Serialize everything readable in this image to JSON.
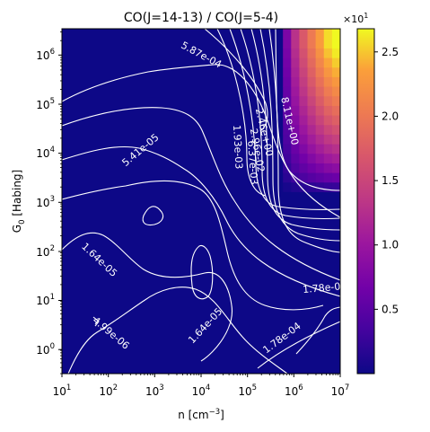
{
  "chart_data": {
    "type": "heatmap",
    "title": "CO(J=14-13) / CO(J=5-4)",
    "xlabel": "n [cm",
    "xlabel_sup": "−3",
    "xlabel_end": "]",
    "ylabel": "G",
    "ylabel_sub": "0",
    "ylabel_end": " [Habing]",
    "x_scale": "log",
    "y_scale": "log",
    "xlim": [
      10,
      10000000
    ],
    "ylim": [
      0.3,
      3500000
    ],
    "x_ticks": [
      {
        "exp": "1",
        "label_base": "10",
        "label_exp": "1"
      },
      {
        "exp": "2",
        "label_base": "10",
        "label_exp": "2"
      },
      {
        "exp": "3",
        "label_base": "10",
        "label_exp": "3"
      },
      {
        "exp": "4",
        "label_base": "10",
        "label_exp": "4"
      },
      {
        "exp": "5",
        "label_base": "10",
        "label_exp": "5"
      },
      {
        "exp": "6",
        "label_base": "10",
        "label_exp": "6"
      },
      {
        "exp": "7",
        "label_base": "10",
        "label_exp": "7"
      }
    ],
    "y_ticks": [
      {
        "exp": "0",
        "label_base": "10",
        "label_exp": "0"
      },
      {
        "exp": "1",
        "label_base": "10",
        "label_exp": "1"
      },
      {
        "exp": "2",
        "label_base": "10",
        "label_exp": "2"
      },
      {
        "exp": "3",
        "label_base": "10",
        "label_exp": "3"
      },
      {
        "exp": "4",
        "label_base": "10",
        "label_exp": "4"
      },
      {
        "exp": "5",
        "label_base": "10",
        "label_exp": "5"
      },
      {
        "exp": "6",
        "label_base": "10",
        "label_exp": "6"
      }
    ],
    "colormap": "plasma",
    "colorbar": {
      "multiplier_base": "×10",
      "multiplier_exp": "1",
      "vmin": 0.0,
      "vmax": 2.68,
      "ticks": [
        {
          "value": 0.5,
          "label": "0.5"
        },
        {
          "value": 1.0,
          "label": "1.0"
        },
        {
          "value": 1.5,
          "label": "1.5"
        },
        {
          "value": 2.0,
          "label": "2.0"
        },
        {
          "value": 2.5,
          "label": "2.5"
        }
      ]
    },
    "contour_labels": [
      {
        "text": "5.87e-04",
        "log_n": 4.0,
        "log_g0": 6.0,
        "angle": 28
      },
      {
        "text": "5.41e-05",
        "log_n": 2.7,
        "log_g0": 4.05,
        "angle": -40
      },
      {
        "text": "1.64e-05",
        "log_n": 1.8,
        "log_g0": 1.8,
        "angle": 43
      },
      {
        "text": "4.99e-06",
        "log_n": 2.05,
        "log_g0": 0.3,
        "angle": 40
      },
      {
        "text": "1.64e-05",
        "log_n": 4.1,
        "log_g0": 0.45,
        "angle": -47
      },
      {
        "text": "1.78e-04",
        "log_n": 5.75,
        "log_g0": 0.2,
        "angle": -37
      },
      {
        "text": "1.78e-0",
        "log_n": 6.6,
        "log_g0": 1.22,
        "angle": -5
      },
      {
        "text": "1.93e-03",
        "log_n": 4.78,
        "log_g0": 4.12,
        "angle": 87
      },
      {
        "text": "6.37e-03",
        "log_n": 5.1,
        "log_g0": 3.8,
        "angle": 86
      },
      {
        "text": "2.96e-02",
        "log_n": 5.2,
        "log_g0": 4.05,
        "angle": 80
      },
      {
        "text": "2.46e+00",
        "log_n": 5.35,
        "log_g0": 4.42,
        "angle": 77
      },
      {
        "text": "8.11e+00",
        "log_n": 5.9,
        "log_g0": 4.65,
        "angle": 77
      }
    ],
    "grid": false
  }
}
